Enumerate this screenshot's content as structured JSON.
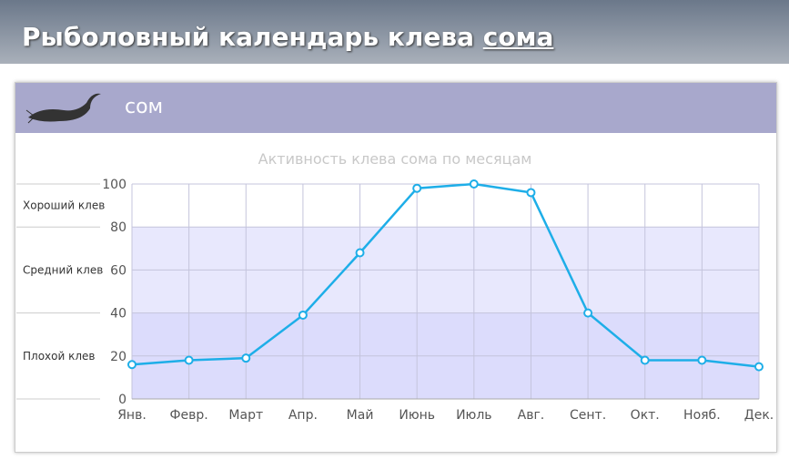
{
  "header": {
    "title": "Рыболовный календарь клева",
    "title_link": "сома"
  },
  "card": {
    "title": "сом"
  },
  "chart_data": {
    "type": "line",
    "title": "Активность клева сома по месяцам",
    "categories": [
      "Янв.",
      "Февр.",
      "Март",
      "Апр.",
      "Май",
      "Июнь",
      "Июль",
      "Авг.",
      "Сент.",
      "Окт.",
      "Нояб.",
      "Дек."
    ],
    "series": [
      {
        "name": "сом",
        "color": "#1eaee8",
        "values": [
          16,
          18,
          19,
          39,
          68,
          98,
          100,
          96,
          40,
          18,
          18,
          15
        ]
      }
    ],
    "ylim": [
      0,
      100
    ],
    "yticks": [
      0,
      20,
      40,
      60,
      80,
      100
    ],
    "grid": true,
    "bands": [
      {
        "from": 0,
        "to": 40,
        "label": "Плохой клев",
        "color": "#dcdcfc"
      },
      {
        "from": 40,
        "to": 80,
        "label": "Средний клев",
        "color": "#e8e8fd"
      },
      {
        "from": 80,
        "to": 100,
        "label": "Хороший клев",
        "color": "#ffffff"
      }
    ]
  }
}
